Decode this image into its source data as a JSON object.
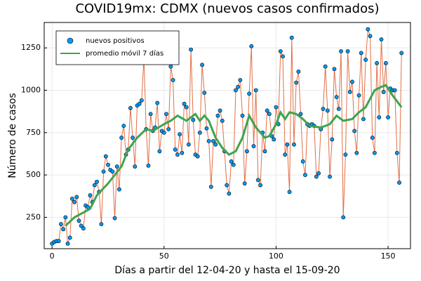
{
  "chart_data": {
    "type": "line",
    "title": "COVID19mx: CDMX (nuevos casos confirmados)",
    "xlabel": "Días a partir del 12-04-20 y hasta el 15-09-20",
    "ylabel": "Número de casos",
    "xlim": [
      -3.5,
      160
    ],
    "ylim": [
      65,
      1400
    ],
    "xticks": [
      0,
      50,
      100,
      150
    ],
    "yticks": [
      250,
      500,
      750,
      1000,
      1250
    ],
    "grid": true,
    "legend": "top-left",
    "series": [
      {
        "name": "nuevos positivos",
        "color": "#009afa",
        "line_color": "#e26f46",
        "marker": true,
        "x": [
          0,
          1,
          2,
          3,
          4,
          5,
          6,
          7,
          8,
          9,
          10,
          11,
          12,
          13,
          14,
          15,
          16,
          17,
          18,
          19,
          20,
          21,
          22,
          23,
          24,
          25,
          26,
          27,
          28,
          29,
          30,
          31,
          32,
          33,
          34,
          35,
          36,
          37,
          38,
          39,
          40,
          41,
          42,
          43,
          44,
          45,
          46,
          47,
          48,
          49,
          50,
          51,
          52,
          53,
          54,
          55,
          56,
          57,
          58,
          59,
          60,
          61,
          62,
          63,
          64,
          65,
          66,
          67,
          68,
          69,
          70,
          71,
          72,
          73,
          74,
          75,
          76,
          77,
          78,
          79,
          80,
          81,
          82,
          83,
          84,
          85,
          86,
          87,
          88,
          89,
          90,
          91,
          92,
          93,
          94,
          95,
          96,
          97,
          98,
          99,
          100,
          101,
          102,
          103,
          104,
          105,
          106,
          107,
          108,
          109,
          110,
          111,
          112,
          113,
          114,
          115,
          116,
          117,
          118,
          119,
          120,
          121,
          122,
          123,
          124,
          125,
          126,
          127,
          128,
          129,
          130,
          131,
          132,
          133,
          134,
          135,
          136,
          137,
          138,
          139,
          140,
          141,
          142,
          143,
          144,
          145,
          146,
          147,
          148,
          149,
          150,
          151,
          152,
          153,
          154,
          155,
          156
        ],
        "values": [
          95,
          105,
          110,
          110,
          210,
          180,
          250,
          95,
          130,
          360,
          340,
          370,
          230,
          200,
          185,
          320,
          310,
          380,
          340,
          440,
          460,
          400,
          210,
          520,
          610,
          560,
          530,
          520,
          245,
          550,
          415,
          720,
          790,
          620,
          650,
          895,
          720,
          550,
          910,
          920,
          940,
          1190,
          770,
          555,
          860,
          760,
          780,
          925,
          640,
          760,
          750,
          860,
          770,
          1140,
          1060,
          650,
          620,
          740,
          630,
          920,
          900,
          680,
          1240,
          825,
          620,
          610,
          750,
          1150,
          985,
          775,
          700,
          430,
          700,
          680,
          850,
          880,
          820,
          640,
          440,
          390,
          580,
          560,
          1000,
          1020,
          1060,
          850,
          450,
          640,
          980,
          1260,
          670,
          1000,
          470,
          440,
          750,
          640,
          880,
          860,
          730,
          710,
          900,
          800,
          1230,
          1200,
          620,
          680,
          400,
          1310,
          680,
          1045,
          1110,
          860,
          580,
          500,
          800,
          790,
          800,
          790,
          490,
          510,
          770,
          890,
          1140,
          880,
          490,
          710,
          1125,
          960,
          890,
          1230,
          250,
          620,
          1230,
          990,
          1050,
          760,
          630,
          970,
          1220,
          830,
          1180,
          1360,
          1320,
          720,
          630,
          1160,
          840,
          1300,
          990,
          1160,
          840,
          1010,
          1000,
          1000,
          630,
          455,
          1220
        ]
      },
      {
        "name": "promedio móvil 7 días",
        "color": "#3ea44e",
        "marker": false,
        "x": [
          6,
          10,
          17,
          20,
          25,
          28,
          31,
          34,
          38,
          42,
          45,
          50,
          53,
          56,
          60,
          64,
          66,
          68,
          70,
          73,
          76,
          79,
          82,
          85,
          88,
          91,
          95,
          97,
          100,
          102,
          104,
          106,
          109,
          112,
          115,
          120,
          124,
          127,
          130,
          134,
          137,
          140,
          144,
          147,
          149,
          152,
          156
        ],
        "values": [
          200,
          250,
          300,
          380,
          450,
          500,
          550,
          650,
          720,
          770,
          760,
          800,
          820,
          850,
          820,
          860,
          820,
          850,
          820,
          720,
          660,
          620,
          640,
          720,
          850,
          780,
          720,
          730,
          800,
          870,
          830,
          870,
          860,
          830,
          790,
          780,
          800,
          850,
          820,
          830,
          870,
          900,
          1000,
          1020,
          1030,
          970,
          900
        ]
      }
    ]
  }
}
